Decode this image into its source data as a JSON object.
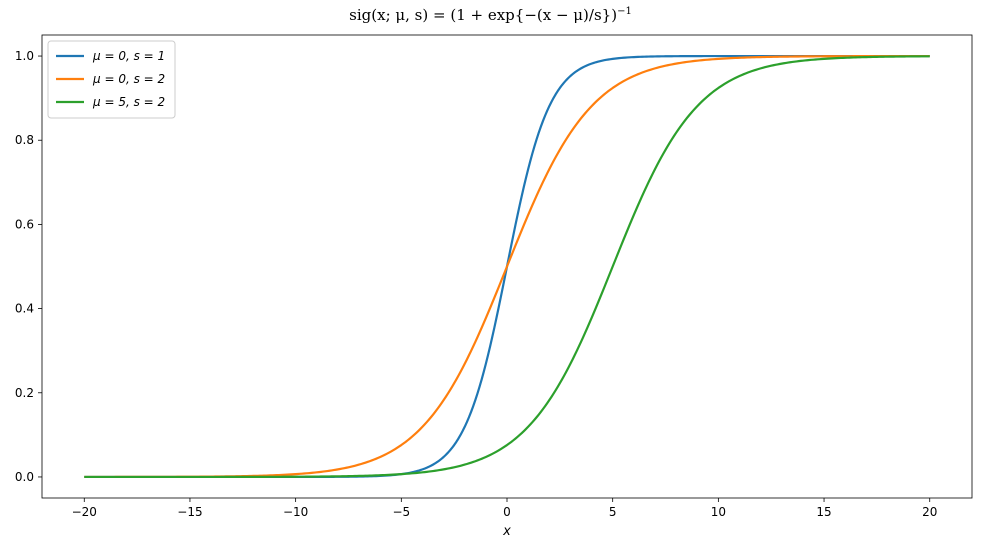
{
  "chart_data": {
    "type": "line",
    "title": "sig(x; μ, s) = (1 + exp{−(x − μ)/s})",
    "title_superscript": "−1",
    "xlabel": "x",
    "ylabel": "",
    "xlim": [
      -22,
      22
    ],
    "ylim": [
      -0.05,
      1.05
    ],
    "xticks": [
      -20,
      -15,
      -10,
      -5,
      0,
      5,
      10,
      15,
      20
    ],
    "xtick_labels": [
      "−20",
      "−15",
      "−10",
      "−5",
      "0",
      "5",
      "10",
      "15",
      "20"
    ],
    "yticks": [
      0.0,
      0.2,
      0.4,
      0.6,
      0.8,
      1.0
    ],
    "ytick_labels": [
      "0.0",
      "0.2",
      "0.4",
      "0.6",
      "0.8",
      "1.0"
    ],
    "grid": false,
    "legend_position": "top-left",
    "x_range": [
      -20,
      20
    ],
    "series": [
      {
        "name": "μ = 0, s = 1",
        "mu": 0,
        "s": 1,
        "color": "#1f77b4"
      },
      {
        "name": "μ = 0, s = 2",
        "mu": 0,
        "s": 2,
        "color": "#ff7f0e"
      },
      {
        "name": "μ = 5, s = 2",
        "mu": 5,
        "s": 2,
        "color": "#2ca02c"
      }
    ]
  }
}
